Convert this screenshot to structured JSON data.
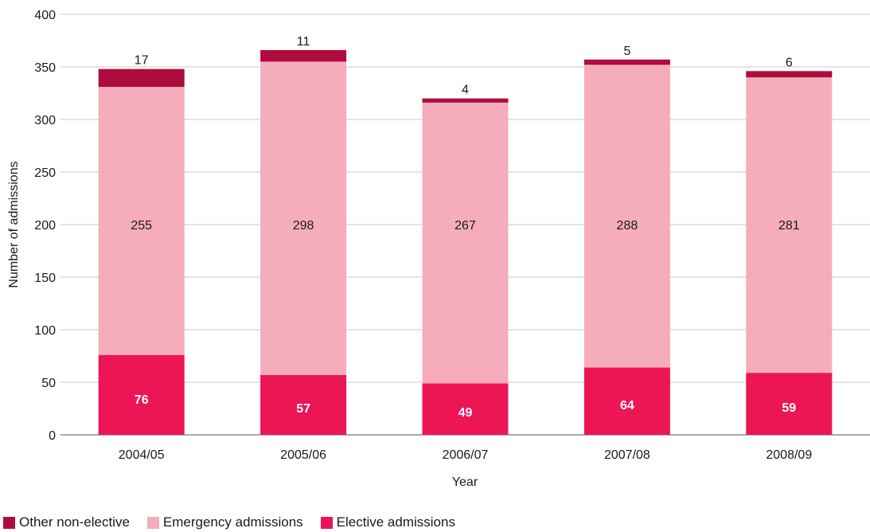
{
  "chart_data": {
    "type": "bar",
    "stacked": true,
    "xlabel": "Year",
    "ylabel": "Number of admissions",
    "ylim": [
      0,
      400
    ],
    "yticks": [
      0,
      50,
      100,
      150,
      200,
      250,
      300,
      350,
      400
    ],
    "grid": true,
    "legend_position": "bottom-left",
    "categories": [
      "2004/05",
      "2005/06",
      "2006/07",
      "2007/08",
      "2008/09"
    ],
    "series": [
      {
        "name": "Elective admissions",
        "color": "#ec1655",
        "values": [
          76,
          57,
          49,
          64,
          59
        ]
      },
      {
        "name": "Emergency admissions",
        "color": "#f5adbb",
        "values": [
          255,
          298,
          267,
          288,
          281
        ]
      },
      {
        "name": "Other non-elective",
        "color": "#ae0c3e",
        "values": [
          17,
          11,
          4,
          5,
          6
        ]
      }
    ],
    "legend_order": [
      "Other non-elective",
      "Emergency admissions",
      "Elective admissions"
    ]
  }
}
